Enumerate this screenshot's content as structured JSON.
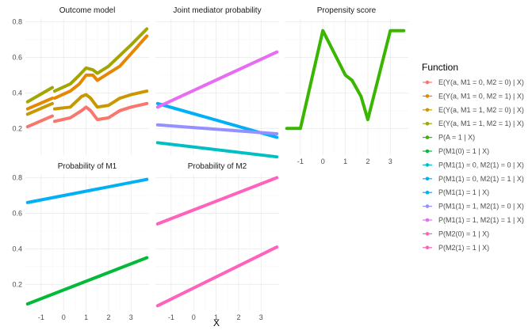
{
  "chart_data": {
    "type": "line",
    "xlabel": "X",
    "legend": {
      "title": "Function",
      "placement": "right",
      "entries": [
        {
          "label": "E(Y(a, M1 = 0, M2 = 0) | X)",
          "color": "#F8766D"
        },
        {
          "label": "E(Y(a, M1 = 0, M2 = 1) | X)",
          "color": "#E58700"
        },
        {
          "label": "E(Y(a, M1 = 1, M2 = 0) | X)",
          "color": "#C99800"
        },
        {
          "label": "E(Y(a, M1 = 1, M2 = 1) | X)",
          "color": "#A3A500"
        },
        {
          "label": "P(A = 1 | X)",
          "color": "#39B600"
        },
        {
          "label": "P(M1(0) = 1 | X)",
          "color": "#00BA38"
        },
        {
          "label": "P(M1(1) = 0, M2(1) = 0 | X)",
          "color": "#00BFC4"
        },
        {
          "label": "P(M1(1) = 0, M2(1) = 1 | X)",
          "color": "#00B0F6"
        },
        {
          "label": "P(M1(1) = 1 | X)",
          "color": "#00B0F6"
        },
        {
          "label": "P(M1(1) = 1, M2(1) = 0 | X)",
          "color": "#9590FF"
        },
        {
          "label": "P(M1(1) = 1, M2(1) = 1 | X)",
          "color": "#E76BF3"
        },
        {
          "label": "P(M2(0) = 1 | X)",
          "color": "#FF62BC"
        },
        {
          "label": "P(M2(1) = 1 | X)",
          "color": "#FF62BC"
        }
      ]
    },
    "panels": [
      {
        "title": "Outcome model",
        "xlim": [
          -1.7,
          3.8
        ],
        "ylim": [
          0.05,
          0.82
        ],
        "yticks": [
          0.2,
          0.4,
          0.6,
          0.8
        ],
        "ytick_labels": [
          "0.2",
          "0.4",
          "0.6",
          "0.8"
        ],
        "xticks": [
          -1,
          0,
          1,
          2,
          3
        ],
        "xtick_labels": [],
        "grid": true,
        "series": [
          {
            "color": "#F8766D",
            "segments": [
              [
                [
                  -1.6,
                  0.21
                ],
                [
                  -0.5,
                  0.27
                ]
              ],
              [
                [
                  -0.4,
                  0.24
                ],
                [
                  0.3,
                  0.26
                ],
                [
                  0.8,
                  0.3
                ],
                [
                  1.0,
                  0.32
                ],
                [
                  1.2,
                  0.3
                ],
                [
                  1.5,
                  0.25
                ],
                [
                  2.0,
                  0.26
                ],
                [
                  2.5,
                  0.3
                ],
                [
                  3.0,
                  0.32
                ],
                [
                  3.7,
                  0.34
                ]
              ]
            ]
          },
          {
            "color": "#E58700",
            "segments": [
              [
                [
                  -1.6,
                  0.31
                ],
                [
                  -0.5,
                  0.37
                ]
              ],
              [
                [
                  -0.4,
                  0.37
                ],
                [
                  0.3,
                  0.41
                ],
                [
                  0.7,
                  0.45
                ],
                [
                  1.0,
                  0.5
                ],
                [
                  1.3,
                  0.5
                ],
                [
                  1.5,
                  0.47
                ],
                [
                  2.0,
                  0.51
                ],
                [
                  2.5,
                  0.55
                ],
                [
                  3.0,
                  0.62
                ],
                [
                  3.7,
                  0.72
                ]
              ]
            ]
          },
          {
            "color": "#C99800",
            "segments": [
              [
                [
                  -1.6,
                  0.28
                ],
                [
                  -0.5,
                  0.34
                ]
              ],
              [
                [
                  -0.4,
                  0.31
                ],
                [
                  0.3,
                  0.32
                ],
                [
                  0.8,
                  0.38
                ],
                [
                  1.0,
                  0.39
                ],
                [
                  1.2,
                  0.37
                ],
                [
                  1.5,
                  0.32
                ],
                [
                  2.0,
                  0.33
                ],
                [
                  2.5,
                  0.37
                ],
                [
                  3.0,
                  0.39
                ],
                [
                  3.7,
                  0.41
                ]
              ]
            ]
          },
          {
            "color": "#A3A500",
            "segments": [
              [
                [
                  -1.6,
                  0.35
                ],
                [
                  -0.5,
                  0.43
                ]
              ],
              [
                [
                  -0.4,
                  0.41
                ],
                [
                  0.3,
                  0.45
                ],
                [
                  0.7,
                  0.5
                ],
                [
                  1.0,
                  0.54
                ],
                [
                  1.3,
                  0.53
                ],
                [
                  1.5,
                  0.51
                ],
                [
                  2.0,
                  0.55
                ],
                [
                  2.5,
                  0.61
                ],
                [
                  3.0,
                  0.67
                ],
                [
                  3.7,
                  0.76
                ]
              ]
            ]
          }
        ]
      },
      {
        "title": "Joint mediator probability",
        "xlim": [
          -1.7,
          3.8
        ],
        "ylim": [
          0.05,
          0.82
        ],
        "yticks": [
          0.2,
          0.4,
          0.6,
          0.8
        ],
        "ytick_labels": [],
        "xticks": [
          -1,
          0,
          1,
          2,
          3
        ],
        "xtick_labels": [],
        "grid": true,
        "series": [
          {
            "color": "#00BFC4",
            "segments": [
              [
                [
                  -1.6,
                  0.12
                ],
                [
                  3.7,
                  0.04
                ]
              ]
            ]
          },
          {
            "color": "#00B0F6",
            "segments": [
              [
                [
                  -1.6,
                  0.34
                ],
                [
                  3.7,
                  0.15
                ]
              ]
            ]
          },
          {
            "color": "#9590FF",
            "segments": [
              [
                [
                  -1.6,
                  0.22
                ],
                [
                  3.7,
                  0.17
                ]
              ]
            ]
          },
          {
            "color": "#E76BF3",
            "segments": [
              [
                [
                  -1.6,
                  0.32
                ],
                [
                  3.7,
                  0.63
                ]
              ]
            ]
          }
        ]
      },
      {
        "title": "Propensity score",
        "xlim": [
          -1.7,
          3.8
        ],
        "ylim": [
          0.05,
          0.82
        ],
        "yticks": [
          0.2,
          0.4,
          0.6,
          0.8
        ],
        "ytick_labels": [],
        "xticks": [
          -1,
          0,
          1,
          2,
          3
        ],
        "xtick_labels": [
          "-1",
          "0",
          "1",
          "2",
          "3"
        ],
        "grid": true,
        "series": [
          {
            "color": "#39B600",
            "segments": [
              [
                [
                  -1.6,
                  0.2
                ],
                [
                  -1.0,
                  0.2
                ],
                [
                  0.0,
                  0.75
                ],
                [
                  1.0,
                  0.5
                ],
                [
                  1.3,
                  0.47
                ],
                [
                  1.7,
                  0.38
                ],
                [
                  2.0,
                  0.25
                ],
                [
                  3.0,
                  0.75
                ],
                [
                  3.6,
                  0.75
                ]
              ]
            ]
          }
        ]
      },
      {
        "title": "Probability of M1",
        "xlim": [
          -1.7,
          3.8
        ],
        "ylim": [
          0.05,
          0.82
        ],
        "yticks": [
          0.2,
          0.4,
          0.6,
          0.8
        ],
        "ytick_labels": [
          "0.2",
          "0.4",
          "0.6",
          "0.8"
        ],
        "xticks": [
          -1,
          0,
          1,
          2,
          3
        ],
        "xtick_labels": [
          "-1",
          "0",
          "1",
          "2",
          "3"
        ],
        "grid": true,
        "series": [
          {
            "color": "#00BA38",
            "segments": [
              [
                [
                  -1.6,
                  0.09
                ],
                [
                  3.7,
                  0.35
                ]
              ]
            ]
          },
          {
            "color": "#00B0F6",
            "segments": [
              [
                [
                  -1.6,
                  0.66
                ],
                [
                  3.7,
                  0.79
                ]
              ]
            ]
          }
        ]
      },
      {
        "title": "Probability of M2",
        "xlim": [
          -1.7,
          3.8
        ],
        "ylim": [
          0.05,
          0.82
        ],
        "yticks": [
          0.2,
          0.4,
          0.6,
          0.8
        ],
        "ytick_labels": [],
        "xticks": [
          -1,
          0,
          1,
          2,
          3
        ],
        "xtick_labels": [
          "-1",
          "0",
          "1",
          "2",
          "3"
        ],
        "grid": true,
        "series": [
          {
            "color": "#FF62BC",
            "segments": [
              [
                [
                  -1.6,
                  0.08
                ],
                [
                  3.7,
                  0.41
                ]
              ]
            ]
          },
          {
            "color": "#FF62BC",
            "segments": [
              [
                [
                  -1.6,
                  0.54
                ],
                [
                  3.7,
                  0.8
                ]
              ]
            ]
          }
        ]
      }
    ]
  }
}
